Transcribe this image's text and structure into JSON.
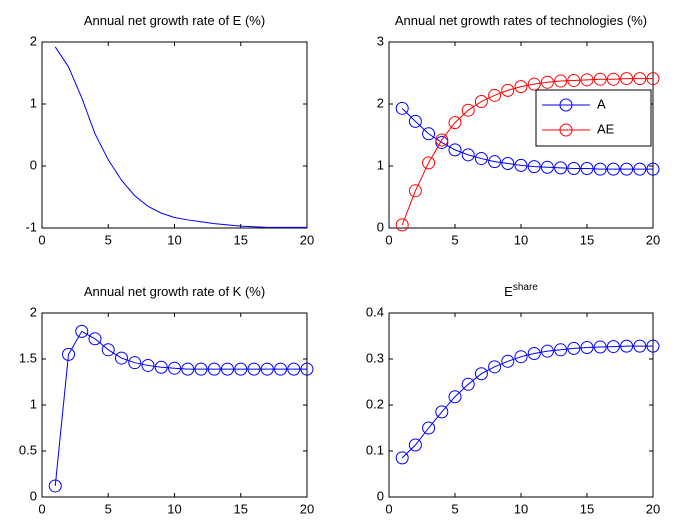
{
  "chart_data": [
    {
      "type": "line",
      "title": "Annual net growth rate of E (%)",
      "marker": "none",
      "x": [
        1,
        2,
        3,
        4,
        5,
        6,
        7,
        8,
        9,
        10,
        11,
        12,
        13,
        14,
        15,
        16,
        17,
        18,
        19,
        20
      ],
      "series": [
        {
          "color": "#0000ff",
          "values": [
            1.92,
            1.6,
            1.1,
            0.52,
            0.1,
            -0.23,
            -0.48,
            -0.65,
            -0.76,
            -0.83,
            -0.87,
            -0.9,
            -0.93,
            -0.95,
            -0.97,
            -0.98,
            -0.99,
            -0.99,
            -0.99,
            -0.99
          ]
        }
      ],
      "xlim": [
        0,
        20
      ],
      "xticks": [
        0,
        5,
        10,
        15,
        20
      ],
      "ylim": [
        -1,
        2
      ],
      "yticks": [
        -1,
        0,
        1,
        2
      ]
    },
    {
      "type": "line",
      "title": "Annual net growth rates of technologies (%)",
      "marker": "circle",
      "legend": "northeast",
      "x": [
        1,
        2,
        3,
        4,
        5,
        6,
        7,
        8,
        9,
        10,
        11,
        12,
        13,
        14,
        15,
        16,
        17,
        18,
        19,
        20
      ],
      "series": [
        {
          "name": "A",
          "color": "#0000ff",
          "values": [
            1.93,
            1.72,
            1.52,
            1.38,
            1.26,
            1.18,
            1.12,
            1.07,
            1.04,
            1.01,
            0.99,
            0.98,
            0.97,
            0.96,
            0.96,
            0.95,
            0.95,
            0.95,
            0.95,
            0.95
          ]
        },
        {
          "name": "AE",
          "color": "#ff0000",
          "values": [
            0.05,
            0.6,
            1.05,
            1.42,
            1.7,
            1.9,
            2.04,
            2.14,
            2.22,
            2.28,
            2.32,
            2.35,
            2.37,
            2.38,
            2.39,
            2.4,
            2.4,
            2.41,
            2.41,
            2.41
          ]
        }
      ],
      "xlim": [
        0,
        20
      ],
      "xticks": [
        0,
        5,
        10,
        15,
        20
      ],
      "ylim": [
        0,
        3
      ],
      "yticks": [
        0,
        1,
        2,
        3
      ]
    },
    {
      "type": "line",
      "title": "Annual net growth rate of K (%)",
      "marker": "circle",
      "x": [
        1,
        2,
        3,
        4,
        5,
        6,
        7,
        8,
        9,
        10,
        11,
        12,
        13,
        14,
        15,
        16,
        17,
        18,
        19,
        20
      ],
      "series": [
        {
          "color": "#0000ff",
          "values": [
            0.12,
            1.55,
            1.8,
            1.72,
            1.6,
            1.51,
            1.46,
            1.43,
            1.41,
            1.4,
            1.39,
            1.39,
            1.39,
            1.39,
            1.39,
            1.39,
            1.39,
            1.39,
            1.39,
            1.39
          ]
        }
      ],
      "xlim": [
        0,
        20
      ],
      "xticks": [
        0,
        5,
        10,
        15,
        20
      ],
      "ylim": [
        0,
        2
      ],
      "yticks": [
        0,
        0.5,
        1,
        1.5,
        2
      ]
    },
    {
      "type": "line",
      "title": "E",
      "title_superscript": "share",
      "marker": "circle",
      "x": [
        1,
        2,
        3,
        4,
        5,
        6,
        7,
        8,
        9,
        10,
        11,
        12,
        13,
        14,
        15,
        16,
        17,
        18,
        19,
        20
      ],
      "series": [
        {
          "color": "#0000ff",
          "values": [
            0.085,
            0.113,
            0.15,
            0.185,
            0.218,
            0.245,
            0.268,
            0.283,
            0.295,
            0.305,
            0.312,
            0.317,
            0.32,
            0.323,
            0.325,
            0.326,
            0.327,
            0.328,
            0.328,
            0.328
          ]
        }
      ],
      "xlim": [
        0,
        20
      ],
      "xticks": [
        0,
        5,
        10,
        15,
        20
      ],
      "ylim": [
        0,
        0.4
      ],
      "yticks": [
        0,
        0.1,
        0.2,
        0.3,
        0.4
      ]
    }
  ]
}
